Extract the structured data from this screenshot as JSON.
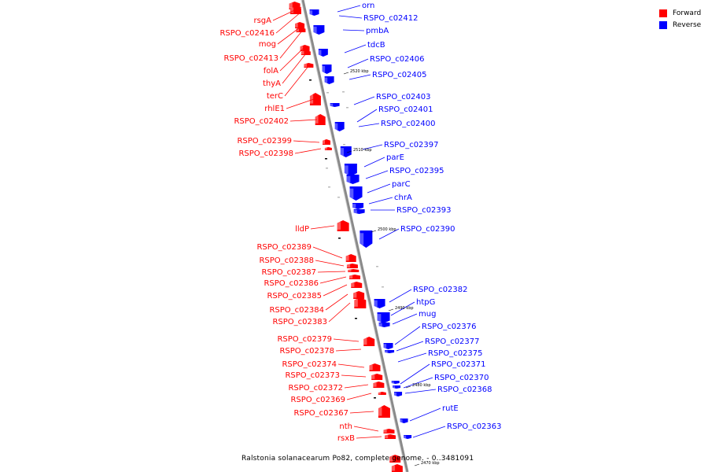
{
  "legend": {
    "forward": {
      "label": "Forward",
      "color": "#ff0000"
    },
    "reverse": {
      "label": "Reverse",
      "color": "#0000ff"
    }
  },
  "caption": "Ralstonia solanacearum Po82, complete genome. - 0..3481091",
  "scale_ticks": [
    "2520 kbp",
    "2510 kbp",
    "2500 kbp",
    "2490 kbp",
    "2480 kbp",
    "2470 kbp"
  ],
  "forward_labels": [
    "rsgA",
    "RSPO_c02416",
    "mog",
    "RSPO_c02413",
    "folA",
    "thyA",
    "terC",
    "rhlE1",
    "RSPO_c02402",
    "RSPO_c02399",
    "RSPO_c02398",
    "lldP",
    "RSPO_c02389",
    "RSPO_c02388",
    "RSPO_c02387",
    "RSPO_c02386",
    "RSPO_c02385",
    "RSPO_c02384",
    "RSPO_c02383",
    "RSPO_c02379",
    "RSPO_c02378",
    "RSPO_c02374",
    "RSPO_c02373",
    "RSPO_c02372",
    "RSPO_c02369",
    "RSPO_c02367",
    "nth",
    "rsxB"
  ],
  "reverse_labels": [
    "orn",
    "RSPO_c02412",
    "pmbA",
    "tdcB",
    "RSPO_c02406",
    "RSPO_c02405",
    "RSPO_c02403",
    "RSPO_c02401",
    "RSPO_c02400",
    "RSPO_c02397",
    "parE",
    "RSPO_c02395",
    "parC",
    "chrA",
    "RSPO_c02393",
    "RSPO_c02390",
    "RSPO_c02382",
    "htpG",
    "mug",
    "RSPO_c02376",
    "RSPO_c02377",
    "RSPO_c02375",
    "RSPO_c02371",
    "RSPO_c02370",
    "RSPO_c02368",
    "rutE",
    "RSPO_c02363"
  ]
}
